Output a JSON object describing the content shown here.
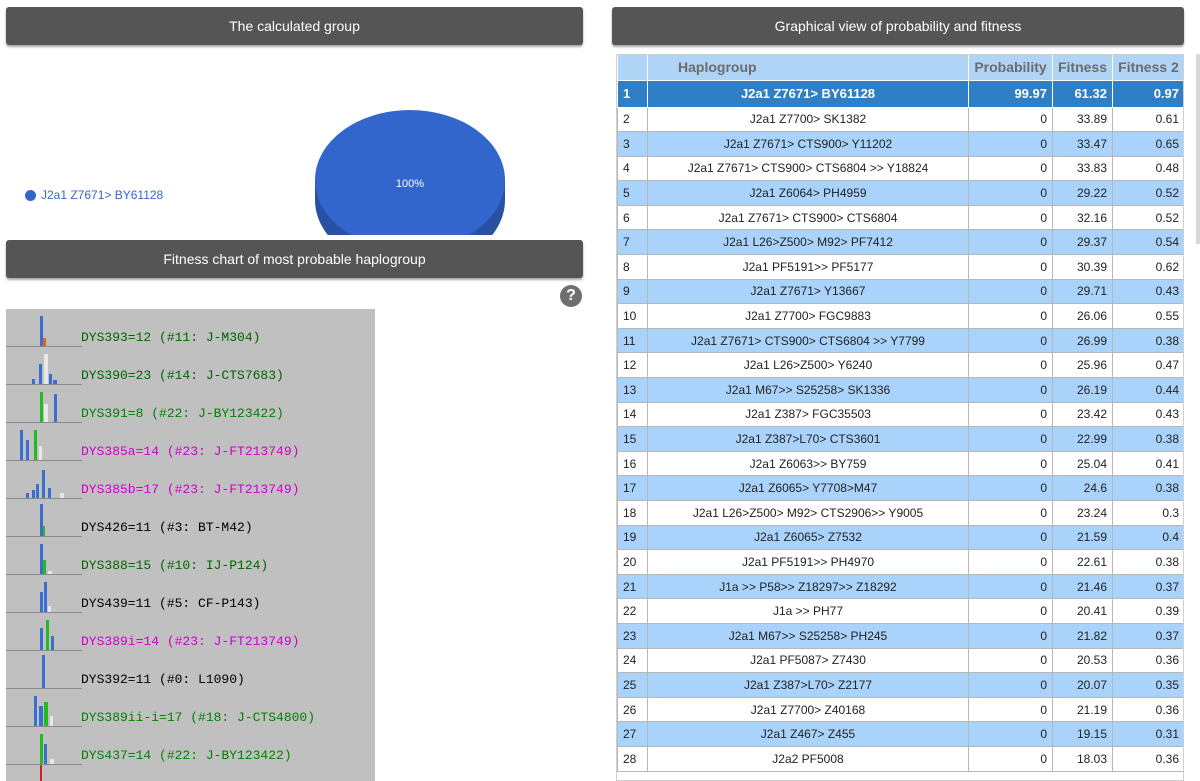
{
  "headers": {
    "group": "The calculated group",
    "graph": "Graphical view of probability and fitness",
    "fitness": "Fitness chart of most probable haplogroup"
  },
  "pie": {
    "legend": "J2a1 Z7671> BY61128",
    "percent": "100%",
    "color": "#3366cc"
  },
  "help_icon": "?",
  "fitness_chart": [
    {
      "label": "DYS393=12 (#11: J-M304)",
      "color": "#006400"
    },
    {
      "label": "DYS390=23 (#14: J-CTS7683)",
      "color": "#006400"
    },
    {
      "label": "DYS391=8 (#22: J-BY123422)",
      "color": "#008000"
    },
    {
      "label": "DYS385a=14 (#23: J-FT213749)",
      "color": "#cc00cc"
    },
    {
      "label": "DYS385b=17 (#23: J-FT213749)",
      "color": "#cc00cc"
    },
    {
      "label": "DYS426=11 (#3: BT-M42)",
      "color": "#000000"
    },
    {
      "label": "DYS388=15 (#10: IJ-P124)",
      "color": "#006400"
    },
    {
      "label": "DYS439=11 (#5: CF-P143)",
      "color": "#000000"
    },
    {
      "label": "DYS389i=14 (#23: J-FT213749)",
      "color": "#cc00cc"
    },
    {
      "label": "DYS392=11 (#0: L1090)",
      "color": "#000000"
    },
    {
      "label": "DYS389ii-i=17 (#18: J-CTS4800)",
      "color": "#008000"
    },
    {
      "label": "DYS437=14 (#22: J-BY123422)",
      "color": "#008000"
    }
  ],
  "table": {
    "columns": [
      "Haplogroup",
      "Probability",
      "Fitness",
      "Fitness 2"
    ],
    "rows": [
      {
        "n": "1",
        "hg": "J2a1 Z7671> BY61128",
        "p": "99.97",
        "f": "61.32",
        "f2": "0.97"
      },
      {
        "n": "2",
        "hg": "J2a1 Z7700> SK1382",
        "p": "0",
        "f": "33.89",
        "f2": "0.61"
      },
      {
        "n": "3",
        "hg": "J2a1 Z7671> CTS900> Y11202",
        "p": "0",
        "f": "33.47",
        "f2": "0.65"
      },
      {
        "n": "4",
        "hg": "J2a1 Z7671> CTS900> CTS6804 >> Y18824",
        "p": "0",
        "f": "33.83",
        "f2": "0.48"
      },
      {
        "n": "5",
        "hg": "J2a1 Z6064> PH4959",
        "p": "0",
        "f": "29.22",
        "f2": "0.52"
      },
      {
        "n": "6",
        "hg": "J2a1 Z7671> CTS900> CTS6804",
        "p": "0",
        "f": "32.16",
        "f2": "0.52"
      },
      {
        "n": "7",
        "hg": "J2a1 L26>Z500> M92> PF7412",
        "p": "0",
        "f": "29.37",
        "f2": "0.54"
      },
      {
        "n": "8",
        "hg": "J2a1 PF5191>> PF5177",
        "p": "0",
        "f": "30.39",
        "f2": "0.62"
      },
      {
        "n": "9",
        "hg": "J2a1 Z7671> Y13667",
        "p": "0",
        "f": "29.71",
        "f2": "0.43"
      },
      {
        "n": "10",
        "hg": "J2a1 Z7700> FGC9883",
        "p": "0",
        "f": "26.06",
        "f2": "0.55"
      },
      {
        "n": "11",
        "hg": "J2a1 Z7671> CTS900> CTS6804 >> Y7799",
        "p": "0",
        "f": "26.99",
        "f2": "0.38"
      },
      {
        "n": "12",
        "hg": "J2a1 L26>Z500> Y6240",
        "p": "0",
        "f": "25.96",
        "f2": "0.47"
      },
      {
        "n": "13",
        "hg": "J2a1 M67>> S25258> SK1336",
        "p": "0",
        "f": "26.19",
        "f2": "0.44"
      },
      {
        "n": "14",
        "hg": "J2a1 Z387> FGC35503",
        "p": "0",
        "f": "23.42",
        "f2": "0.43"
      },
      {
        "n": "15",
        "hg": "J2a1 Z387>L70> CTS3601",
        "p": "0",
        "f": "22.99",
        "f2": "0.38"
      },
      {
        "n": "16",
        "hg": "J2a1 Z6063>> BY759",
        "p": "0",
        "f": "25.04",
        "f2": "0.41"
      },
      {
        "n": "17",
        "hg": "J2a1 Z6065> Y7708>M47",
        "p": "0",
        "f": "24.6",
        "f2": "0.38"
      },
      {
        "n": "18",
        "hg": "J2a1 L26>Z500> M92> CTS2906>> Y9005",
        "p": "0",
        "f": "23.24",
        "f2": "0.3"
      },
      {
        "n": "19",
        "hg": "J2a1 Z6065> Z7532",
        "p": "0",
        "f": "21.59",
        "f2": "0.4"
      },
      {
        "n": "20",
        "hg": "J2a1 PF5191>> PH4970",
        "p": "0",
        "f": "22.61",
        "f2": "0.38"
      },
      {
        "n": "21",
        "hg": "J1a >> P58>> Z18297>> Z18292",
        "p": "0",
        "f": "21.46",
        "f2": "0.37"
      },
      {
        "n": "22",
        "hg": "J1a >> PH77",
        "p": "0",
        "f": "20.41",
        "f2": "0.39"
      },
      {
        "n": "23",
        "hg": "J2a1 M67>> S25258> PH245",
        "p": "0",
        "f": "21.82",
        "f2": "0.37"
      },
      {
        "n": "24",
        "hg": "J2a1 PF5087> Z7430",
        "p": "0",
        "f": "20.53",
        "f2": "0.36"
      },
      {
        "n": "25",
        "hg": "J2a1 Z387>L70> Z2177",
        "p": "0",
        "f": "20.07",
        "f2": "0.35"
      },
      {
        "n": "26",
        "hg": "J2a1 Z7700> Z40168",
        "p": "0",
        "f": "21.19",
        "f2": "0.36"
      },
      {
        "n": "27",
        "hg": "J2a1 Z467> Z455",
        "p": "0",
        "f": "19.15",
        "f2": "0.31"
      },
      {
        "n": "28",
        "hg": "J2a2 PF5008",
        "p": "0",
        "f": "18.03",
        "f2": "0.36"
      }
    ]
  }
}
